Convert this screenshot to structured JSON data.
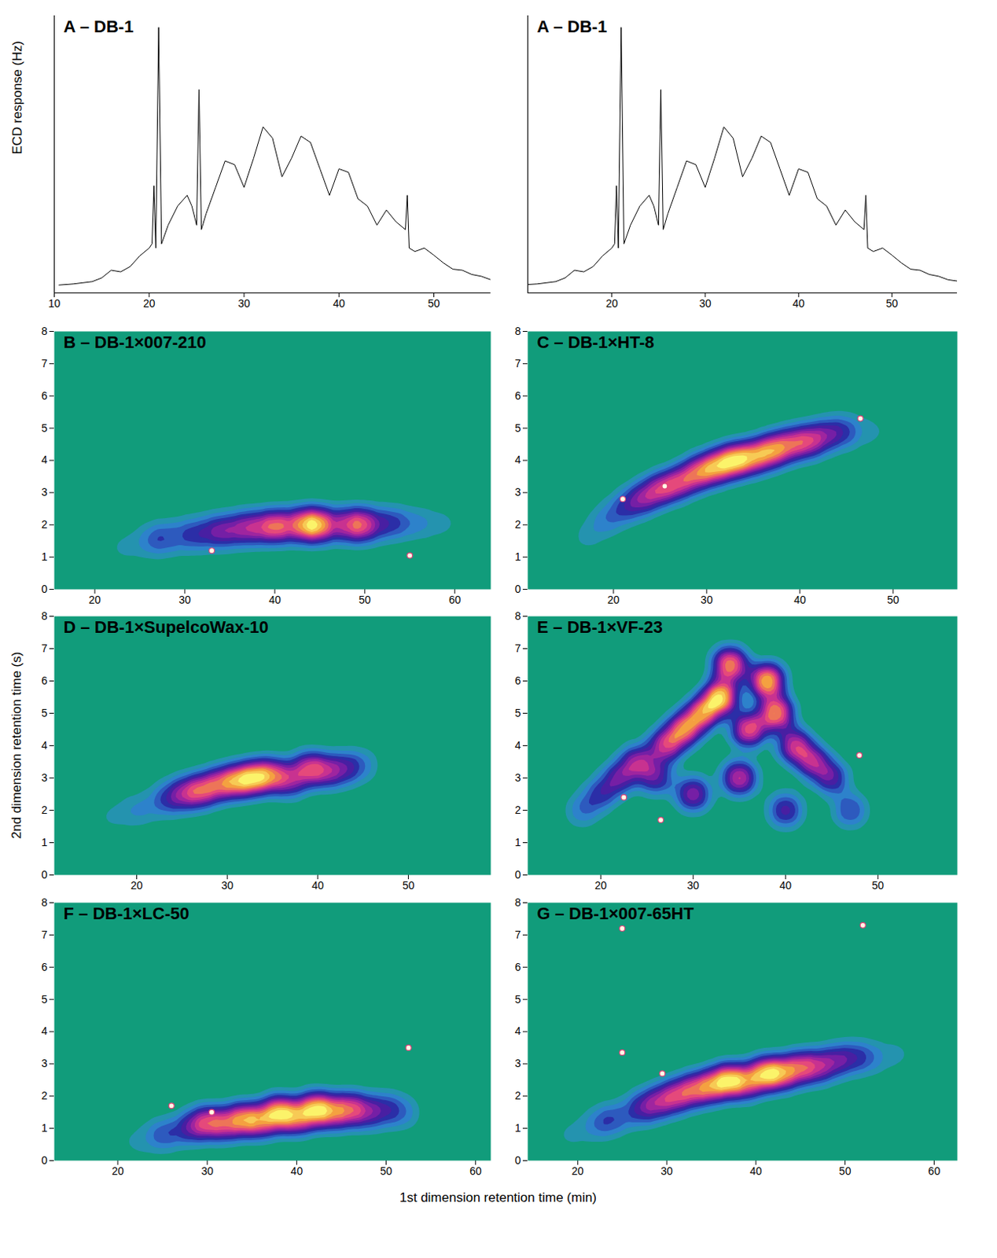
{
  "shared": {
    "x_label": "1st dimension retention time (min)",
    "y_label": "2nd dimension retention time (s)"
  },
  "chart_data": [
    {
      "type": "line",
      "title": "A – DB-1",
      "y_label": "ECD response (Hz)",
      "color": "#000000",
      "tick_labels": "x",
      "xlim": [
        10,
        56
      ],
      "xticks": [
        10,
        20,
        30,
        40,
        50
      ],
      "ylim": [
        0,
        105
      ],
      "x": [
        10.5,
        12,
        14,
        15,
        16,
        17,
        18,
        19,
        20,
        20.3,
        20.5,
        20.7,
        21.0,
        21.3,
        22,
        23,
        24,
        24.5,
        25,
        25.25,
        25.5,
        26,
        27,
        28,
        29,
        30,
        31,
        32,
        33,
        34,
        35,
        36,
        37,
        38,
        39,
        40,
        41,
        42,
        43,
        44,
        45,
        46,
        47,
        47.2,
        47.4,
        48,
        49,
        50,
        51,
        52,
        53,
        54,
        55,
        56
      ],
      "values": [
        3,
        3.4,
        4.3,
        5.7,
        8.6,
        8,
        10,
        14,
        17,
        18.6,
        40.6,
        17,
        100.6,
        18.6,
        25.7,
        32.9,
        37,
        32.9,
        25.7,
        77,
        24,
        30,
        40,
        50,
        48.6,
        40,
        51,
        62.9,
        58.6,
        44,
        51,
        59.4,
        57,
        47,
        37,
        47,
        45.7,
        35.7,
        32.9,
        25.7,
        31.4,
        27,
        24,
        37,
        17,
        15.7,
        17,
        14.3,
        11.4,
        9,
        8.6,
        7,
        6.3,
        5
      ]
    },
    {
      "type": "line",
      "title": "A – DB-1",
      "color": "#000000",
      "tick_labels": "x",
      "xlim": [
        11,
        57
      ],
      "xticks": [
        20,
        30,
        40,
        50
      ],
      "ylim": [
        0,
        105
      ],
      "x": [
        11,
        12,
        14,
        15,
        16,
        17,
        18,
        19,
        20,
        20.3,
        20.5,
        20.7,
        21.0,
        21.3,
        22,
        23,
        24,
        24.5,
        25,
        25.25,
        25.5,
        26,
        27,
        28,
        29,
        30,
        31,
        32,
        33,
        34,
        35,
        36,
        37,
        38,
        39,
        40,
        41,
        42,
        43,
        44,
        45,
        46,
        47,
        47.2,
        47.4,
        48,
        49,
        50,
        51,
        52,
        53,
        54,
        55,
        56,
        57
      ],
      "values": [
        3.2,
        3.4,
        4.3,
        5.7,
        8.6,
        8,
        10,
        14,
        17,
        18.6,
        40.6,
        17,
        100.6,
        18.6,
        25.7,
        32.9,
        37,
        32.9,
        25.7,
        77,
        24,
        30,
        40,
        50,
        48.6,
        40,
        51,
        62.9,
        58.6,
        44,
        51,
        59.4,
        57,
        47,
        37,
        47,
        45.7,
        35.7,
        32.9,
        25.7,
        31.4,
        27,
        24,
        37,
        17,
        15.7,
        17,
        14.3,
        11.4,
        9,
        8.6,
        7,
        6.3,
        5,
        4.5
      ]
    },
    {
      "type": "contour",
      "title": "B – DB-1×007-210",
      "xlim": [
        15.5,
        64
      ],
      "xticks": [
        20,
        30,
        40,
        50,
        60
      ],
      "ylim": [
        0,
        8
      ],
      "yticks": [
        0,
        1,
        2,
        3,
        4,
        5,
        6,
        7,
        8
      ],
      "points": [
        {
          "x": 23,
          "y": 1.3,
          "weight": 1
        },
        {
          "x": 26,
          "y": 1.5,
          "weight": 2
        },
        {
          "x": 28,
          "y": 1.6,
          "weight": 3
        },
        {
          "x": 31,
          "y": 1.7,
          "weight": 4
        },
        {
          "x": 34,
          "y": 1.8,
          "weight": 6
        },
        {
          "x": 37,
          "y": 1.9,
          "weight": 7
        },
        {
          "x": 40,
          "y": 1.95,
          "weight": 9
        },
        {
          "x": 43,
          "y": 2.0,
          "weight": 8
        },
        {
          "x": 45,
          "y": 2.0,
          "weight": 9
        },
        {
          "x": 48,
          "y": 2.0,
          "weight": 6
        },
        {
          "x": 50,
          "y": 2.0,
          "weight": 7
        },
        {
          "x": 53,
          "y": 2.05,
          "weight": 4
        },
        {
          "x": 56,
          "y": 2.05,
          "weight": 2
        },
        {
          "x": 59,
          "y": 2.05,
          "weight": 1
        }
      ],
      "peaks": [
        {
          "x": 33,
          "y": 1.2
        },
        {
          "x": 55,
          "y": 1.05
        }
      ]
    },
    {
      "type": "contour",
      "title": "C – DB-1×HT-8",
      "xlim": [
        10.8,
        56.9
      ],
      "xticks": [
        20,
        30,
        40,
        50
      ],
      "ylim": [
        0,
        8
      ],
      "yticks": [
        0,
        1,
        2,
        3,
        4,
        5,
        6,
        7,
        8
      ],
      "points": [
        {
          "x": 17,
          "y": 1.6,
          "weight": 1
        },
        {
          "x": 19,
          "y": 2.1,
          "weight": 2
        },
        {
          "x": 21,
          "y": 2.5,
          "weight": 3
        },
        {
          "x": 23,
          "y": 2.8,
          "weight": 5
        },
        {
          "x": 25,
          "y": 3.1,
          "weight": 6
        },
        {
          "x": 27,
          "y": 3.3,
          "weight": 6
        },
        {
          "x": 29,
          "y": 3.6,
          "weight": 7
        },
        {
          "x": 31,
          "y": 3.8,
          "weight": 8
        },
        {
          "x": 33,
          "y": 4.0,
          "weight": 9
        },
        {
          "x": 35,
          "y": 4.1,
          "weight": 7
        },
        {
          "x": 37,
          "y": 4.3,
          "weight": 8
        },
        {
          "x": 39,
          "y": 4.5,
          "weight": 6
        },
        {
          "x": 41,
          "y": 4.6,
          "weight": 6
        },
        {
          "x": 43,
          "y": 4.8,
          "weight": 4
        },
        {
          "x": 45,
          "y": 4.9,
          "weight": 3
        },
        {
          "x": 48,
          "y": 4.9,
          "weight": 1
        }
      ],
      "peaks": [
        {
          "x": 21,
          "y": 2.8
        },
        {
          "x": 25.5,
          "y": 3.2
        },
        {
          "x": 46.5,
          "y": 5.3
        }
      ]
    },
    {
      "type": "contour",
      "title": "D – DB-1×SupelcoWax-10",
      "xlim": [
        10.9,
        59.1
      ],
      "xticks": [
        20,
        30,
        40,
        50
      ],
      "ylim": [
        0,
        8
      ],
      "yticks": [
        0,
        1,
        2,
        3,
        4,
        5,
        6,
        7,
        8
      ],
      "points": [
        {
          "x": 17,
          "y": 1.8,
          "weight": 1
        },
        {
          "x": 20,
          "y": 2.0,
          "weight": 2
        },
        {
          "x": 23,
          "y": 2.3,
          "weight": 3
        },
        {
          "x": 25,
          "y": 2.5,
          "weight": 5
        },
        {
          "x": 27,
          "y": 2.6,
          "weight": 7
        },
        {
          "x": 29,
          "y": 2.8,
          "weight": 6
        },
        {
          "x": 31,
          "y": 2.9,
          "weight": 8
        },
        {
          "x": 33,
          "y": 3.0,
          "weight": 9
        },
        {
          "x": 35,
          "y": 3.1,
          "weight": 7
        },
        {
          "x": 37,
          "y": 2.9,
          "weight": 5
        },
        {
          "x": 39,
          "y": 3.3,
          "weight": 7
        },
        {
          "x": 41,
          "y": 3.2,
          "weight": 5
        },
        {
          "x": 43,
          "y": 3.3,
          "weight": 4
        },
        {
          "x": 45,
          "y": 3.4,
          "weight": 2
        }
      ],
      "peaks": []
    },
    {
      "type": "contour",
      "title": "E – DB-1×VF-23",
      "xlim": [
        12.1,
        58.6
      ],
      "xticks": [
        20,
        30,
        40,
        50
      ],
      "ylim": [
        0,
        8
      ],
      "yticks": [
        0,
        1,
        2,
        3,
        4,
        5,
        6,
        7,
        8
      ],
      "points": [
        {
          "x": 18,
          "y": 2.0,
          "weight": 2
        },
        {
          "x": 20,
          "y": 2.5,
          "weight": 3
        },
        {
          "x": 22,
          "y": 3.0,
          "weight": 4
        },
        {
          "x": 24,
          "y": 3.5,
          "weight": 5
        },
        {
          "x": 26,
          "y": 3.0,
          "weight": 4
        },
        {
          "x": 27,
          "y": 4.0,
          "weight": 6
        },
        {
          "x": 29,
          "y": 4.5,
          "weight": 7
        },
        {
          "x": 31,
          "y": 5.0,
          "weight": 7
        },
        {
          "x": 33,
          "y": 5.5,
          "weight": 9
        },
        {
          "x": 34,
          "y": 6.5,
          "weight": 8
        },
        {
          "x": 36,
          "y": 4.5,
          "weight": 7
        },
        {
          "x": 38,
          "y": 6.0,
          "weight": 9
        },
        {
          "x": 39,
          "y": 5.0,
          "weight": 8
        },
        {
          "x": 41,
          "y": 4.0,
          "weight": 6
        },
        {
          "x": 43,
          "y": 3.5,
          "weight": 5
        },
        {
          "x": 45,
          "y": 3.0,
          "weight": 4
        },
        {
          "x": 47,
          "y": 2.0,
          "weight": 3
        },
        {
          "x": 30,
          "y": 2.5,
          "weight": 5
        },
        {
          "x": 35,
          "y": 3.0,
          "weight": 6
        },
        {
          "x": 40,
          "y": 2.0,
          "weight": 4
        }
      ],
      "peaks": [
        {
          "x": 22.5,
          "y": 2.4
        },
        {
          "x": 26.5,
          "y": 1.7
        },
        {
          "x": 48,
          "y": 3.7
        }
      ]
    },
    {
      "type": "contour",
      "title": "F – DB-1×LC-50",
      "xlim": [
        12.9,
        61.7
      ],
      "xticks": [
        20,
        30,
        40,
        50,
        60
      ],
      "ylim": [
        0,
        8
      ],
      "yticks": [
        0,
        1,
        2,
        3,
        4,
        5,
        6,
        7,
        8
      ],
      "points": [
        {
          "x": 22,
          "y": 0.6,
          "weight": 1
        },
        {
          "x": 25,
          "y": 0.8,
          "weight": 3
        },
        {
          "x": 28,
          "y": 1.0,
          "weight": 4
        },
        {
          "x": 30,
          "y": 1.2,
          "weight": 6
        },
        {
          "x": 32,
          "y": 1.1,
          "weight": 5
        },
        {
          "x": 34,
          "y": 1.3,
          "weight": 7
        },
        {
          "x": 36,
          "y": 1.2,
          "weight": 6
        },
        {
          "x": 38,
          "y": 1.5,
          "weight": 9
        },
        {
          "x": 40,
          "y": 1.3,
          "weight": 6
        },
        {
          "x": 42,
          "y": 1.6,
          "weight": 9
        },
        {
          "x": 44,
          "y": 1.5,
          "weight": 6
        },
        {
          "x": 46,
          "y": 1.6,
          "weight": 6
        },
        {
          "x": 48,
          "y": 1.5,
          "weight": 4
        },
        {
          "x": 50,
          "y": 1.6,
          "weight": 3
        },
        {
          "x": 52,
          "y": 1.5,
          "weight": 2
        }
      ],
      "peaks": [
        {
          "x": 26,
          "y": 1.7
        },
        {
          "x": 30.5,
          "y": 1.5
        },
        {
          "x": 52.5,
          "y": 3.5
        }
      ]
    },
    {
      "type": "contour",
      "title": "G – DB-1×007-65HT",
      "xlim": [
        14.4,
        62.6
      ],
      "xticks": [
        20,
        30,
        40,
        50,
        60
      ],
      "ylim": [
        0,
        8
      ],
      "yticks": [
        0,
        1,
        2,
        3,
        4,
        5,
        6,
        7,
        8
      ],
      "points": [
        {
          "x": 19,
          "y": 0.8,
          "weight": 1
        },
        {
          "x": 22,
          "y": 1.1,
          "weight": 2
        },
        {
          "x": 24,
          "y": 1.3,
          "weight": 3
        },
        {
          "x": 27,
          "y": 1.6,
          "weight": 4
        },
        {
          "x": 29,
          "y": 1.8,
          "weight": 5
        },
        {
          "x": 31,
          "y": 2.0,
          "weight": 6
        },
        {
          "x": 33,
          "y": 2.2,
          "weight": 6
        },
        {
          "x": 35,
          "y": 2.3,
          "weight": 7
        },
        {
          "x": 37,
          "y": 2.5,
          "weight": 9
        },
        {
          "x": 39,
          "y": 2.4,
          "weight": 6
        },
        {
          "x": 41,
          "y": 2.7,
          "weight": 9
        },
        {
          "x": 43,
          "y": 2.7,
          "weight": 7
        },
        {
          "x": 45,
          "y": 2.9,
          "weight": 6
        },
        {
          "x": 47,
          "y": 2.9,
          "weight": 5
        },
        {
          "x": 49,
          "y": 3.1,
          "weight": 4
        },
        {
          "x": 51,
          "y": 3.2,
          "weight": 3
        },
        {
          "x": 53,
          "y": 3.2,
          "weight": 2
        },
        {
          "x": 56,
          "y": 3.3,
          "weight": 1
        }
      ],
      "peaks": [
        {
          "x": 25,
          "y": 3.35
        },
        {
          "x": 29.5,
          "y": 2.7
        },
        {
          "x": 52,
          "y": 7.3
        },
        {
          "x": 25,
          "y": 7.2
        }
      ]
    }
  ]
}
